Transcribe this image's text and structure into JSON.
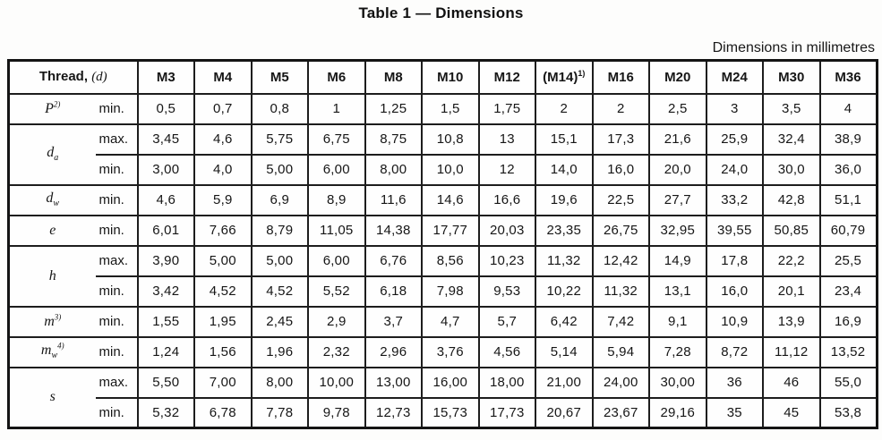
{
  "title": "Table 1 — Dimensions",
  "units_note": "Dimensions in millimetres",
  "accent_colors": {
    "ink": "#161616",
    "rule": "#1d1d1d",
    "paper": "#fdfdfc"
  },
  "chart_data": {
    "type": "table",
    "title": "Table 1 — Dimensions",
    "units": "Dimensions in millimetres",
    "thread_label": "Thread,",
    "thread_symbol": "(d)",
    "sizes": [
      {
        "label": "M3",
        "sup": ""
      },
      {
        "label": "M4",
        "sup": ""
      },
      {
        "label": "M5",
        "sup": ""
      },
      {
        "label": "M6",
        "sup": ""
      },
      {
        "label": "M8",
        "sup": ""
      },
      {
        "label": "M10",
        "sup": ""
      },
      {
        "label": "M12",
        "sup": ""
      },
      {
        "label": "(M14)",
        "sup": "1)"
      },
      {
        "label": "M16",
        "sup": ""
      },
      {
        "label": "M20",
        "sup": ""
      },
      {
        "label": "M24",
        "sup": ""
      },
      {
        "label": "M30",
        "sup": ""
      },
      {
        "label": "M36",
        "sup": ""
      }
    ],
    "rows": [
      {
        "symbol": "P",
        "sub": "",
        "sup": "2)",
        "lines": [
          {
            "limit": "min.",
            "values": [
              "0,5",
              "0,7",
              "0,8",
              "1",
              "1,25",
              "1,5",
              "1,75",
              "2",
              "2",
              "2,5",
              "3",
              "3,5",
              "4"
            ]
          }
        ]
      },
      {
        "symbol": "d",
        "sub": "a",
        "sup": "",
        "lines": [
          {
            "limit": "max.",
            "values": [
              "3,45",
              "4,6",
              "5,75",
              "6,75",
              "8,75",
              "10,8",
              "13",
              "15,1",
              "17,3",
              "21,6",
              "25,9",
              "32,4",
              "38,9"
            ]
          },
          {
            "limit": "min.",
            "values": [
              "3,00",
              "4,0",
              "5,00",
              "6,00",
              "8,00",
              "10,0",
              "12",
              "14,0",
              "16,0",
              "20,0",
              "24,0",
              "30,0",
              "36,0"
            ]
          }
        ]
      },
      {
        "symbol": "d",
        "sub": "w",
        "sup": "",
        "lines": [
          {
            "limit": "min.",
            "values": [
              "4,6",
              "5,9",
              "6,9",
              "8,9",
              "11,6",
              "14,6",
              "16,6",
              "19,6",
              "22,5",
              "27,7",
              "33,2",
              "42,8",
              "51,1"
            ]
          }
        ]
      },
      {
        "symbol": "e",
        "sub": "",
        "sup": "",
        "lines": [
          {
            "limit": "min.",
            "values": [
              "6,01",
              "7,66",
              "8,79",
              "11,05",
              "14,38",
              "17,77",
              "20,03",
              "23,35",
              "26,75",
              "32,95",
              "39,55",
              "50,85",
              "60,79"
            ]
          }
        ]
      },
      {
        "symbol": "h",
        "sub": "",
        "sup": "",
        "lines": [
          {
            "limit": "max.",
            "values": [
              "3,90",
              "5,00",
              "5,00",
              "6,00",
              "6,76",
              "8,56",
              "10,23",
              "11,32",
              "12,42",
              "14,9",
              "17,8",
              "22,2",
              "25,5"
            ]
          },
          {
            "limit": "min.",
            "values": [
              "3,42",
              "4,52",
              "4,52",
              "5,52",
              "6,18",
              "7,98",
              "9,53",
              "10,22",
              "11,32",
              "13,1",
              "16,0",
              "20,1",
              "23,4"
            ]
          }
        ]
      },
      {
        "symbol": "m",
        "sub": "",
        "sup": "3)",
        "lines": [
          {
            "limit": "min.",
            "values": [
              "1,55",
              "1,95",
              "2,45",
              "2,9",
              "3,7",
              "4,7",
              "5,7",
              "6,42",
              "7,42",
              "9,1",
              "10,9",
              "13,9",
              "16,9"
            ]
          }
        ]
      },
      {
        "symbol": "m",
        "sub": "w",
        "sup": "4)",
        "lines": [
          {
            "limit": "min.",
            "values": [
              "1,24",
              "1,56",
              "1,96",
              "2,32",
              "2,96",
              "3,76",
              "4,56",
              "5,14",
              "5,94",
              "7,28",
              "8,72",
              "11,12",
              "13,52"
            ]
          }
        ]
      },
      {
        "symbol": "s",
        "sub": "",
        "sup": "",
        "lines": [
          {
            "limit": "max.",
            "values": [
              "5,50",
              "7,00",
              "8,00",
              "10,00",
              "13,00",
              "16,00",
              "18,00",
              "21,00",
              "24,00",
              "30,00",
              "36",
              "46",
              "55,0"
            ]
          },
          {
            "limit": "min.",
            "values": [
              "5,32",
              "6,78",
              "7,78",
              "9,78",
              "12,73",
              "15,73",
              "17,73",
              "20,67",
              "23,67",
              "29,16",
              "35",
              "45",
              "53,8"
            ]
          }
        ]
      }
    ]
  }
}
